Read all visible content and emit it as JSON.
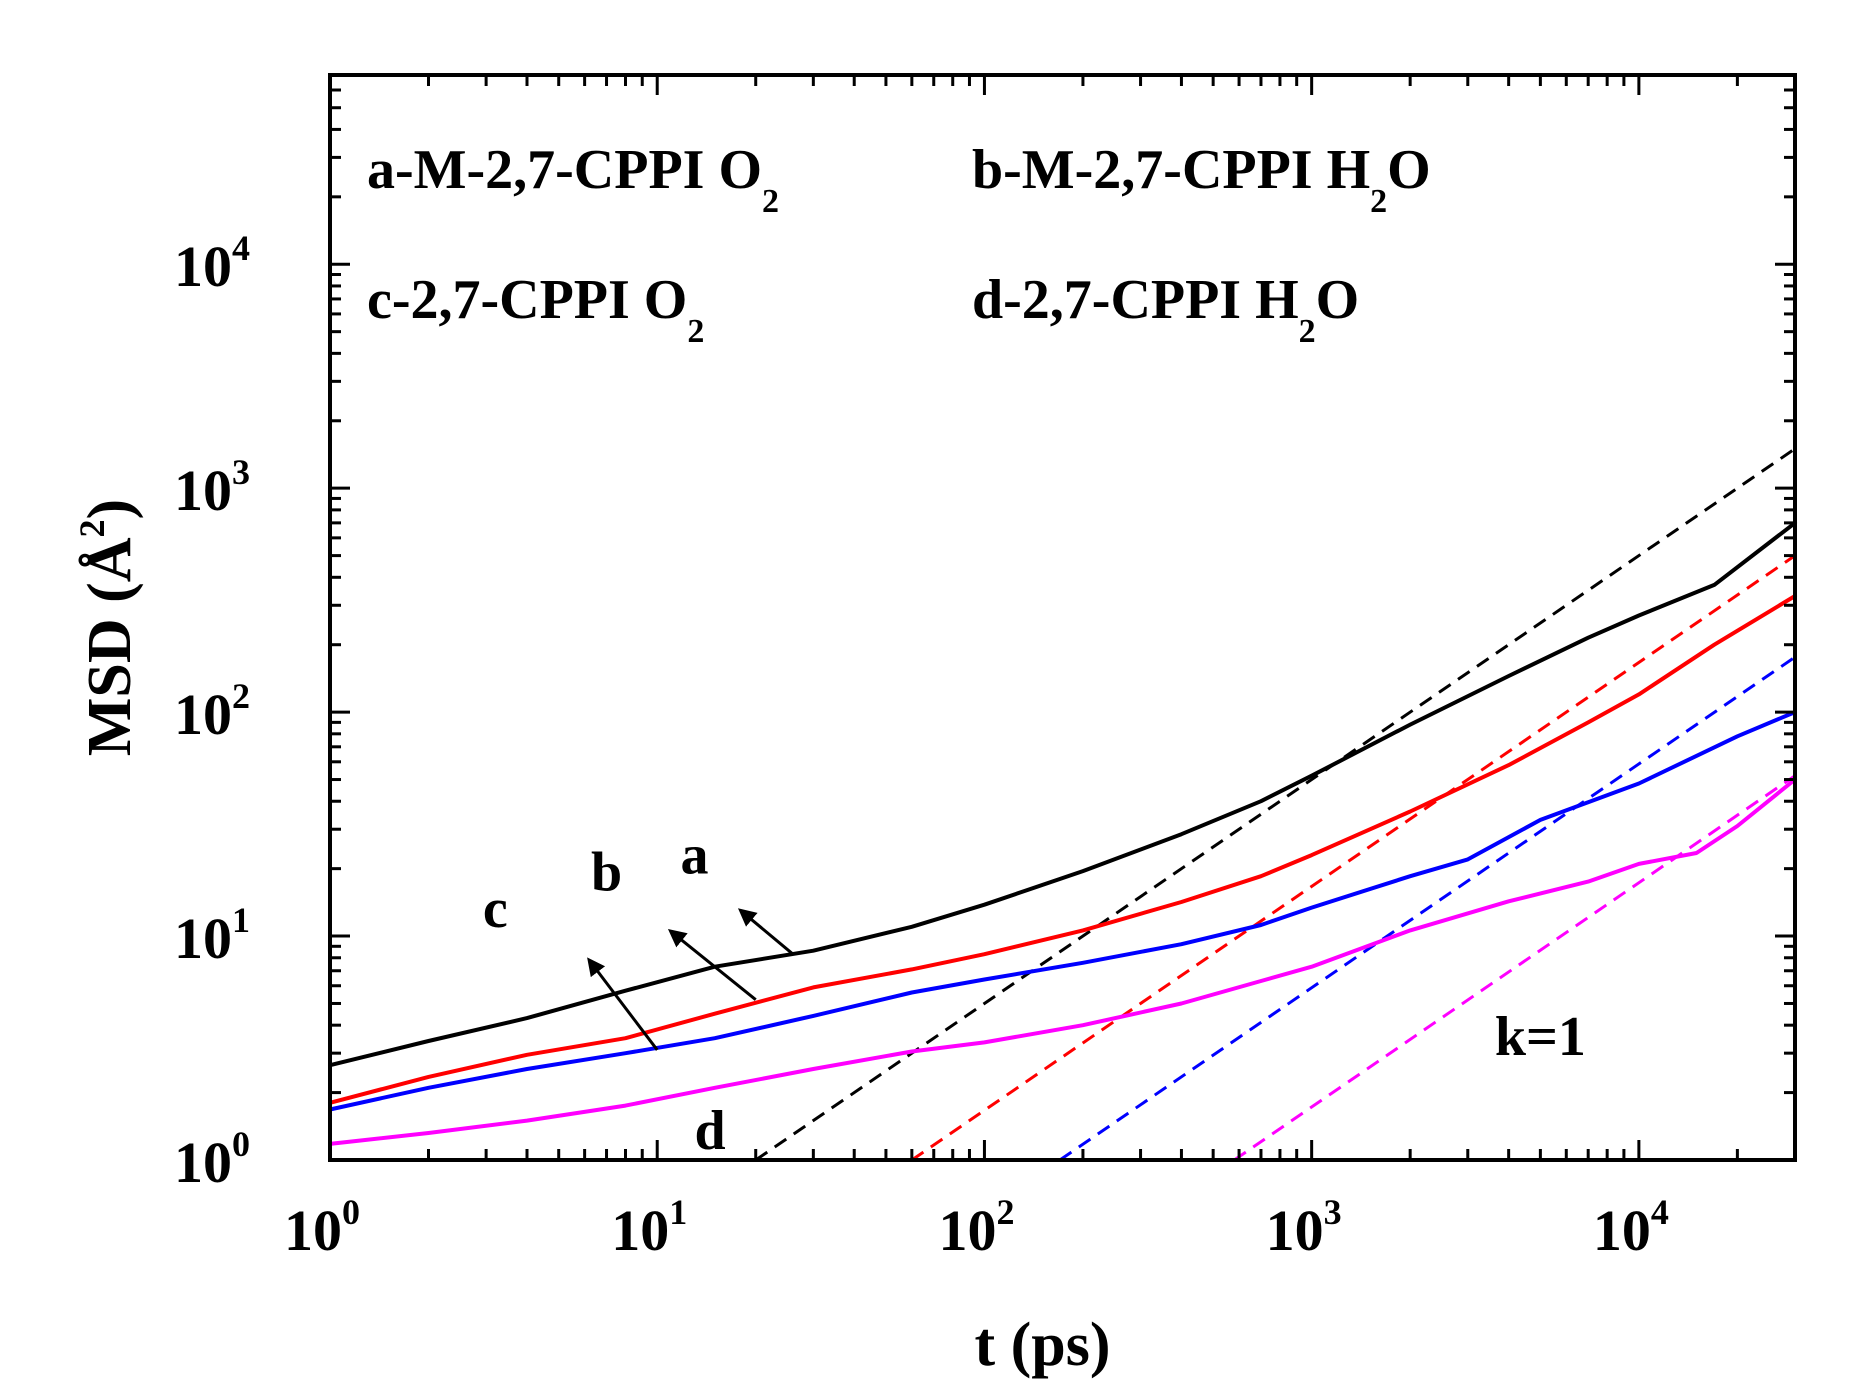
{
  "chart_data": {
    "type": "line",
    "x_scale": "log",
    "y_scale": "log",
    "xlim": [
      1,
      30000
    ],
    "ylim": [
      1,
      70000
    ],
    "xlabel": "t (ps)",
    "ylabel": "MSD (Å²)",
    "ylabel_parts": {
      "prefix": "MSD (",
      "unit": "Å",
      "exp": "2",
      "suffix": ")"
    },
    "x_ticks": [
      {
        "value": 1,
        "base": "10",
        "exp": "0"
      },
      {
        "value": 10,
        "base": "10",
        "exp": "1"
      },
      {
        "value": 100,
        "base": "10",
        "exp": "2"
      },
      {
        "value": 1000,
        "base": "10",
        "exp": "3"
      },
      {
        "value": 10000,
        "base": "10",
        "exp": "4"
      }
    ],
    "y_ticks": [
      {
        "value": 1,
        "base": "10",
        "exp": "0"
      },
      {
        "value": 10,
        "base": "10",
        "exp": "1"
      },
      {
        "value": 100,
        "base": "10",
        "exp": "2"
      },
      {
        "value": 1000,
        "base": "10",
        "exp": "3"
      },
      {
        "value": 10000,
        "base": "10",
        "exp": "4"
      }
    ],
    "legend": [
      {
        "key": "a",
        "text": "a-M-2,7-CPPI O",
        "sub": "2",
        "tail": "",
        "color": "#000000"
      },
      {
        "key": "b",
        "text": "b-M-2,7-CPPI H",
        "sub": "2",
        "tail": "O",
        "color": "#ff0000"
      },
      {
        "key": "c",
        "text": "c-2,7-CPPI O",
        "sub": "2",
        "tail": "",
        "color": "#0000ff"
      },
      {
        "key": "d",
        "text": "d-2,7-CPPI H",
        "sub": "2",
        "tail": "O",
        "color": "#ff00ff"
      }
    ],
    "series": [
      {
        "name": "a-M-2,7-CPPI O2",
        "label": "a",
        "color": "#000000",
        "x": [
          1,
          2,
          4,
          8,
          15,
          30,
          60,
          100,
          200,
          400,
          700,
          1000,
          2000,
          4000,
          7000,
          10000,
          17000,
          30000
        ],
        "y": [
          2.65,
          3.4,
          4.3,
          5.7,
          7.3,
          8.6,
          11,
          13.8,
          19.5,
          28.5,
          40,
          52,
          88,
          145,
          215,
          270,
          370,
          700
        ]
      },
      {
        "name": "b-M-2,7-CPPI H2O",
        "label": "b",
        "color": "#ff0000",
        "x": [
          1,
          2,
          4,
          8,
          15,
          30,
          60,
          100,
          200,
          400,
          700,
          1000,
          2000,
          4000,
          7000,
          10000,
          17000,
          30000
        ],
        "y": [
          1.8,
          2.35,
          2.95,
          3.5,
          4.5,
          5.9,
          7.1,
          8.3,
          10.6,
          14.2,
          18.5,
          23,
          36,
          58,
          90,
          120,
          200,
          330
        ]
      },
      {
        "name": "c-2,7-CPPI O2",
        "label": "c",
        "color": "#0000ff",
        "x": [
          1,
          2,
          4,
          8,
          15,
          30,
          60,
          100,
          200,
          400,
          700,
          1000,
          2000,
          3000,
          5000,
          10000,
          20000,
          30000
        ],
        "y": [
          1.68,
          2.1,
          2.55,
          3.0,
          3.5,
          4.4,
          5.6,
          6.4,
          7.6,
          9.2,
          11.2,
          13.4,
          18.5,
          22,
          33,
          48,
          78,
          100
        ]
      },
      {
        "name": "d-2,7-CPPI H2O",
        "label": "d",
        "color": "#ff00ff",
        "x": [
          1,
          2,
          4,
          8,
          15,
          30,
          60,
          100,
          200,
          400,
          700,
          1000,
          2000,
          4000,
          7000,
          10000,
          15000,
          20000,
          30000
        ],
        "y": [
          1.18,
          1.32,
          1.5,
          1.75,
          2.1,
          2.55,
          3.05,
          3.35,
          4.0,
          5.0,
          6.3,
          7.3,
          10.6,
          14.3,
          17.5,
          21,
          23.5,
          31,
          50
        ]
      }
    ],
    "fits": [
      {
        "name": "k=1 fit a",
        "color": "#000000",
        "x": [
          20,
          30000
        ],
        "y": [
          1,
          1500
        ]
      },
      {
        "name": "k=1 fit b",
        "color": "#ff0000",
        "x": [
          60,
          30000
        ],
        "y": [
          1,
          500
        ]
      },
      {
        "name": "k=1 fit c",
        "color": "#0000ff",
        "x": [
          170,
          30000
        ],
        "y": [
          1,
          176
        ]
      },
      {
        "name": "k=1 fit d",
        "color": "#ff00ff",
        "x": [
          580,
          30000
        ],
        "y": [
          1,
          52
        ]
      }
    ],
    "curve_labels": [
      {
        "text": "a",
        "at": [
          13,
          19
        ],
        "arrow_from": [
          26,
          8.3
        ],
        "arrow_to": [
          18,
          13
        ]
      },
      {
        "text": "b",
        "at": [
          7,
          16
        ],
        "arrow_from": [
          20,
          5.2
        ],
        "arrow_to": [
          11,
          10.5
        ]
      },
      {
        "text": "c",
        "at": [
          3.2,
          11
        ],
        "arrow_from": [
          10,
          3.1
        ],
        "arrow_to": [
          6.2,
          7.8
        ]
      },
      {
        "text": "d",
        "at": [
          14.5,
          1.12
        ]
      }
    ],
    "annotation": {
      "text": "k=1",
      "at": [
        5000,
        2.95
      ]
    }
  }
}
